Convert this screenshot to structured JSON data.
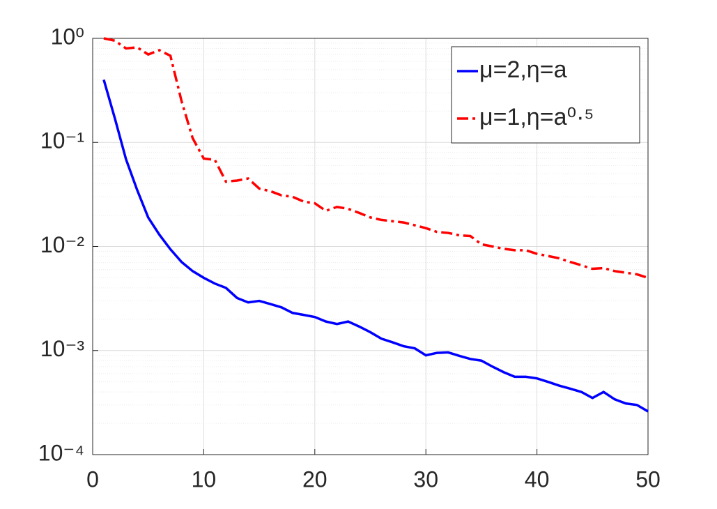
{
  "chart_data": {
    "type": "line",
    "x": [
      1,
      2,
      3,
      4,
      5,
      6,
      7,
      8,
      9,
      10,
      11,
      12,
      13,
      14,
      15,
      16,
      17,
      18,
      19,
      20,
      21,
      22,
      23,
      24,
      25,
      26,
      27,
      28,
      29,
      30,
      31,
      32,
      33,
      34,
      35,
      36,
      37,
      38,
      39,
      40,
      41,
      42,
      43,
      44,
      45,
      46,
      47,
      48,
      49,
      50
    ],
    "series": [
      {
        "name": "μ=2,η=a",
        "color": "#0000ff",
        "line_style": "solid",
        "values": [
          0.4,
          0.17,
          0.069,
          0.035,
          0.019,
          0.013,
          0.0094,
          0.0071,
          0.0058,
          0.005,
          0.0044,
          0.004,
          0.0032,
          0.0029,
          0.003,
          0.0028,
          0.0026,
          0.0023,
          0.0022,
          0.0021,
          0.0019,
          0.0018,
          0.0019,
          0.0017,
          0.0015,
          0.0013,
          0.0012,
          0.0011,
          0.00105,
          0.0009,
          0.00095,
          0.00096,
          0.00089,
          0.00083,
          0.0008,
          0.0007,
          0.00062,
          0.00056,
          0.00056,
          0.00054,
          0.0005,
          0.00046,
          0.00043,
          0.0004,
          0.00035,
          0.0004,
          0.00034,
          0.00031,
          0.0003,
          0.00026
        ]
      },
      {
        "name": "μ=1,η=a⁰·⁵",
        "color": "#ff0000",
        "line_style": "dashdot",
        "values": [
          1.0,
          0.95,
          0.8,
          0.82,
          0.7,
          0.77,
          0.68,
          0.25,
          0.11,
          0.07,
          0.068,
          0.042,
          0.043,
          0.045,
          0.036,
          0.034,
          0.031,
          0.03,
          0.027,
          0.026,
          0.022,
          0.024,
          0.023,
          0.021,
          0.019,
          0.018,
          0.0175,
          0.017,
          0.016,
          0.015,
          0.0138,
          0.0135,
          0.0128,
          0.0126,
          0.0105,
          0.01,
          0.0095,
          0.0092,
          0.0092,
          0.0085,
          0.0081,
          0.0077,
          0.0071,
          0.0066,
          0.0061,
          0.0062,
          0.0058,
          0.0056,
          0.0054,
          0.005
        ]
      }
    ],
    "xlim": [
      0,
      50
    ],
    "xticks": [
      0,
      10,
      20,
      30,
      40,
      50
    ],
    "ylim": [
      0.0001,
      1
    ],
    "yticks": [
      {
        "value": 0.0001,
        "label": "10⁻⁴"
      },
      {
        "value": 0.001,
        "label": "10⁻³"
      },
      {
        "value": 0.01,
        "label": "10⁻²"
      },
      {
        "value": 0.1,
        "label": "10⁻¹"
      },
      {
        "value": 1,
        "label": "10⁰"
      }
    ],
    "yscale": "log",
    "grid": true,
    "minor_grid": true,
    "legend": "upper right"
  }
}
